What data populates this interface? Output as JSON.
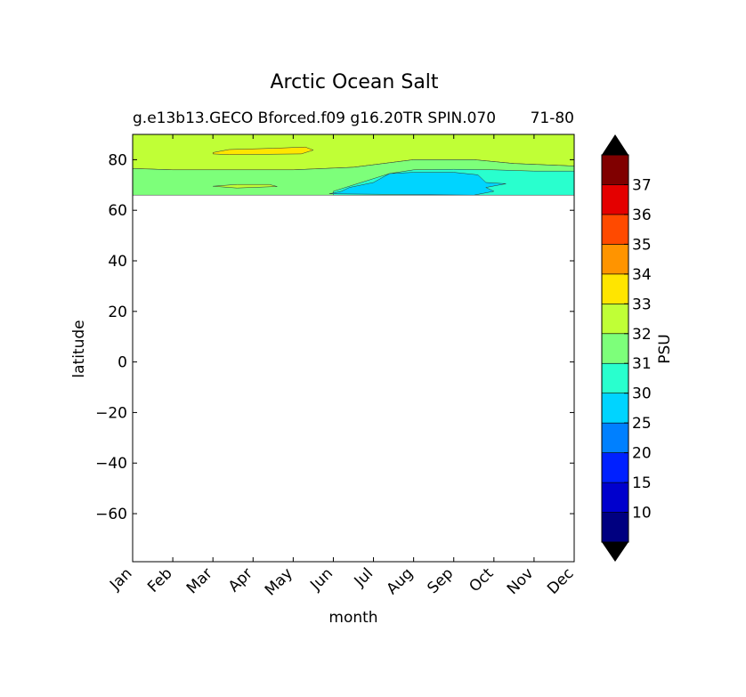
{
  "chart_data": {
    "type": "heatmap",
    "title": "Arctic Ocean Salt",
    "subtitle": "g.e13b13.GECO Bforced.f09 g16.20TR SPIN.070",
    "subtitle_right": "71-80",
    "xlabel": "month",
    "ylabel": "latitude",
    "x_categories": [
      "Jan",
      "Feb",
      "Mar",
      "Apr",
      "May",
      "Jun",
      "Jul",
      "Aug",
      "Sep",
      "Oct",
      "Nov",
      "Dec"
    ],
    "ylim": [
      -79,
      90
    ],
    "y_ticks": [
      "80",
      "60",
      "40",
      "20",
      "0",
      "−20",
      "−40",
      "−60"
    ],
    "y_tick_values": [
      80,
      60,
      40,
      20,
      0,
      -20,
      -40,
      -60
    ],
    "data_extent_lat": [
      66,
      90
    ],
    "colorbar": {
      "label": "PSU",
      "extend": "both",
      "tick_labels": [
        "10",
        "15",
        "20",
        "25",
        "30",
        "31",
        "32",
        "33",
        "34",
        "35",
        "36",
        "37"
      ],
      "levels": [
        5,
        10,
        15,
        20,
        25,
        30,
        31,
        32,
        33,
        34,
        35,
        36,
        37,
        38
      ],
      "colors": [
        "#000080",
        "#0000cd",
        "#0020ff",
        "#0080ff",
        "#00d4ff",
        "#29ffce",
        "#7dff7a",
        "#c0ff36",
        "#ffe500",
        "#ff9400",
        "#ff4a00",
        "#e40000",
        "#800000"
      ],
      "under_color": "#000000",
      "over_color": "#000000"
    },
    "regions": [
      {
        "level": "32-33",
        "color": "#c0ff36",
        "boundary_months": [
          [
            0,
            90
          ],
          [
            11,
            90
          ],
          [
            11,
            77.5
          ],
          [
            9.5,
            78.5
          ],
          [
            8.5,
            80
          ],
          [
            7,
            80
          ],
          [
            5.5,
            77
          ],
          [
            4,
            76
          ],
          [
            1,
            76
          ],
          [
            0,
            76.5
          ]
        ]
      },
      {
        "level": "31-32",
        "color": "#7dff7a",
        "boundary_months": [
          [
            0,
            76.5
          ],
          [
            1,
            76
          ],
          [
            4,
            76
          ],
          [
            5.5,
            77
          ],
          [
            7,
            80
          ],
          [
            8.5,
            80
          ],
          [
            9.5,
            78.5
          ],
          [
            11,
            77.5
          ],
          [
            11,
            66
          ],
          [
            0,
            66
          ]
        ]
      },
      {
        "level": "30-31",
        "color": "#29ffce",
        "boundary_months": [
          [
            5,
            67.5
          ],
          [
            5.3,
            69
          ],
          [
            6.4,
            74.5
          ],
          [
            7,
            76
          ],
          [
            8,
            76.2
          ],
          [
            9,
            76
          ],
          [
            10,
            75.5
          ],
          [
            11,
            75.5
          ],
          [
            11,
            66
          ],
          [
            5,
            66
          ]
        ]
      },
      {
        "level": "25-30",
        "color": "#00d4ff",
        "boundary_months": [
          [
            4.9,
            66.5
          ],
          [
            5.2,
            67.5
          ],
          [
            5.4,
            69
          ],
          [
            6,
            71
          ],
          [
            6.4,
            74.5
          ],
          [
            7,
            75
          ],
          [
            8,
            75
          ],
          [
            8.6,
            74
          ],
          [
            8.8,
            71
          ],
          [
            9.3,
            70.5
          ],
          [
            8.8,
            69
          ],
          [
            9,
            67.5
          ],
          [
            8.5,
            66
          ]
        ]
      },
      {
        "level": "33-34",
        "color": "#ffe500",
        "boundary_months": [
          [
            2,
            82.8
          ],
          [
            2.4,
            84
          ],
          [
            3.5,
            84.5
          ],
          [
            4.3,
            85
          ],
          [
            4.5,
            83.8
          ],
          [
            4.2,
            82.3
          ],
          [
            2.4,
            82
          ],
          [
            2,
            82.3
          ]
        ]
      },
      {
        "level": "32-33",
        "color": "#c0ff36",
        "boundary_months": [
          [
            2,
            69.5
          ],
          [
            2.6,
            70.2
          ],
          [
            3.4,
            70.2
          ],
          [
            3.6,
            69.4
          ],
          [
            2.6,
            68.8
          ]
        ]
      }
    ]
  }
}
